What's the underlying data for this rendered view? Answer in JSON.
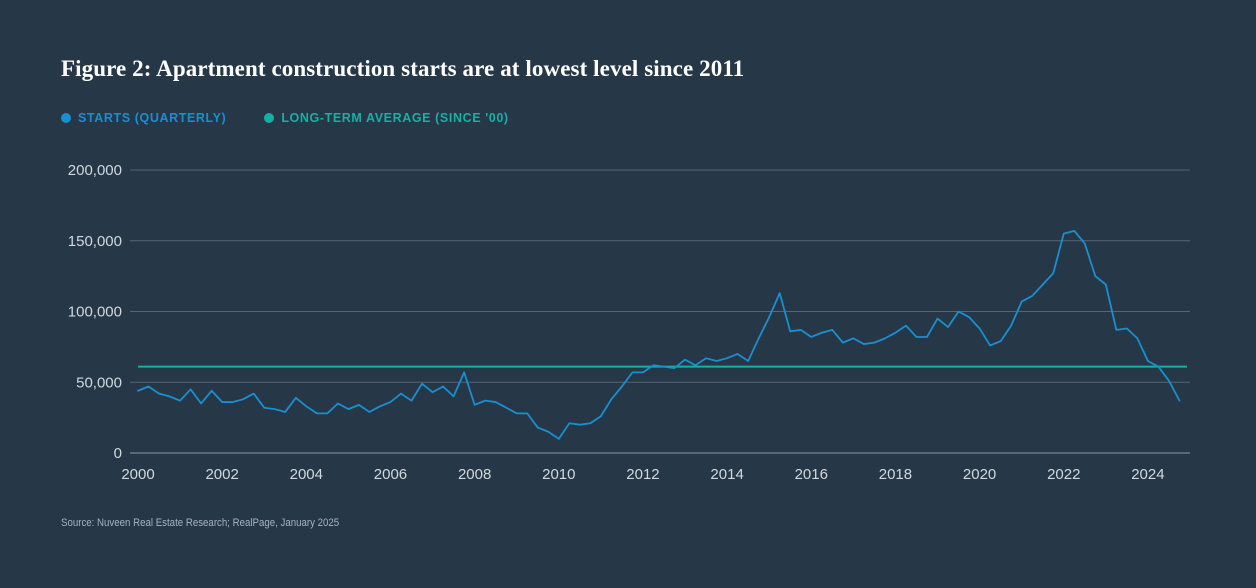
{
  "chart_data": {
    "type": "line",
    "title": "Figure 2: Apartment construction starts are at lowest level since 2011",
    "xlabel": "",
    "ylabel": "",
    "xlim": [
      2000,
      2025
    ],
    "ylim": [
      0,
      200000
    ],
    "y_ticks": [
      {
        "value": 0,
        "label": "0"
      },
      {
        "value": 50000,
        "label": "50,000"
      },
      {
        "value": 100000,
        "label": "100,000"
      },
      {
        "value": 150000,
        "label": "150,000"
      },
      {
        "value": 200000,
        "label": "200,000"
      }
    ],
    "x_ticks": [
      {
        "value": 2000,
        "label": "2000"
      },
      {
        "value": 2002,
        "label": "2002"
      },
      {
        "value": 2004,
        "label": "2004"
      },
      {
        "value": 2006,
        "label": "2006"
      },
      {
        "value": 2008,
        "label": "2008"
      },
      {
        "value": 2010,
        "label": "2010"
      },
      {
        "value": 2012,
        "label": "2012"
      },
      {
        "value": 2014,
        "label": "2014"
      },
      {
        "value": 2016,
        "label": "2016"
      },
      {
        "value": 2018,
        "label": "2018"
      },
      {
        "value": 2020,
        "label": "2020"
      },
      {
        "value": 2022,
        "label": "2022"
      },
      {
        "value": 2024,
        "label": "2024"
      }
    ],
    "legend_placement": "top-left",
    "series": [
      {
        "name": "STARTS (QUARTERLY)",
        "color": "#1a8fd0",
        "start_year": 2000,
        "step": 0.25,
        "values": [
          44000,
          47000,
          42000,
          40000,
          37000,
          45000,
          35000,
          44000,
          36000,
          36000,
          38000,
          42000,
          32000,
          31000,
          29000,
          39000,
          33000,
          28000,
          28000,
          35000,
          31000,
          34000,
          29000,
          33000,
          36000,
          42000,
          37000,
          49000,
          43000,
          47000,
          40000,
          57000,
          34000,
          37000,
          36000,
          32000,
          28000,
          28000,
          18000,
          15000,
          10000,
          21000,
          20000,
          21000,
          26000,
          38000,
          47000,
          57000,
          57000,
          62000,
          61000,
          60000,
          66000,
          62000,
          67000,
          65000,
          67000,
          70000,
          65000,
          81000,
          96000,
          113000,
          86000,
          87000,
          82000,
          85000,
          87000,
          78000,
          81000,
          77000,
          78000,
          81000,
          85000,
          90000,
          82000,
          82000,
          95000,
          89000,
          100000,
          96000,
          88000,
          76000,
          79000,
          90000,
          107000,
          111000,
          119000,
          127000,
          155000,
          157000,
          148000,
          125000,
          119000,
          87000,
          88000,
          81000,
          65000,
          61000,
          51000,
          37000
        ]
      },
      {
        "name": "LONG-TERM AVERAGE (SINCE '00)",
        "color": "#15b1a3",
        "value": 61000
      }
    ]
  },
  "source": "Source: Nuveen Real Estate Research; RealPage, January 2025"
}
